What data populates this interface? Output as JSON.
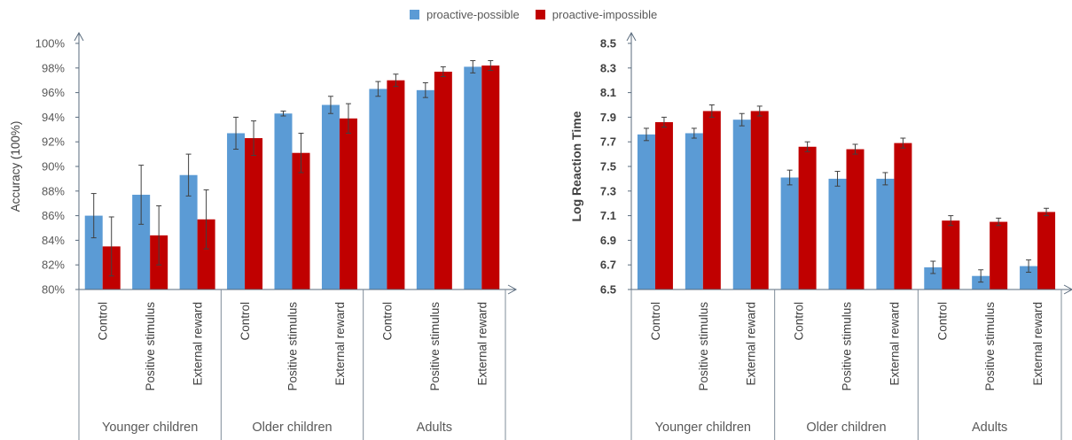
{
  "legend": [
    {
      "name": "proactive-possible",
      "color": "#5b9bd5"
    },
    {
      "name": "proactive-impossible",
      "color": "#c00000"
    }
  ],
  "chart_data": [
    {
      "type": "bar",
      "xlabel": "",
      "ylabel": "Accuracy (100%)",
      "ylim": [
        0.8,
        1.0
      ],
      "yticks": [
        "80%",
        "82%",
        "84%",
        "86%",
        "88%",
        "90%",
        "92%",
        "94%",
        "96%",
        "98%",
        "100%"
      ],
      "groups": [
        "Younger children",
        "Older children",
        "Adults"
      ],
      "categories": [
        "Control",
        "Positive stimulus",
        "External reward",
        "Control",
        "Positive stimulus",
        "External reward",
        "Control",
        "Positive stimulus",
        "External reward"
      ],
      "series": [
        {
          "name": "proactive-possible",
          "values": [
            0.86,
            0.877,
            0.893,
            0.927,
            0.943,
            0.95,
            0.963,
            0.962,
            0.981
          ],
          "errors": [
            0.018,
            0.024,
            0.017,
            0.013,
            0.002,
            0.007,
            0.006,
            0.006,
            0.005
          ]
        },
        {
          "name": "proactive-impossible",
          "values": [
            0.835,
            0.844,
            0.857,
            0.923,
            0.911,
            0.939,
            0.97,
            0.977,
            0.982
          ],
          "errors": [
            0.024,
            0.024,
            0.024,
            0.014,
            0.016,
            0.012,
            0.005,
            0.004,
            0.004
          ]
        }
      ],
      "grid": false,
      "legend_position": "top"
    },
    {
      "type": "bar",
      "xlabel": "",
      "ylabel": "Log Reaction Time",
      "ylim": [
        6.5,
        8.5
      ],
      "yticks": [
        "6.5",
        "6.7",
        "6.9",
        "7.1",
        "7.3",
        "7.5",
        "7.7",
        "7.9",
        "8.1",
        "8.3",
        "8.5"
      ],
      "groups": [
        "Younger children",
        "Older children",
        "Adults"
      ],
      "categories": [
        "Control",
        "Positive stimulus",
        "External reward",
        "Control",
        "Positive stimulus",
        "External reward",
        "Control",
        "Positive stimulus",
        "External reward"
      ],
      "series": [
        {
          "name": "proactive-possible",
          "values": [
            7.76,
            7.77,
            7.88,
            7.41,
            7.4,
            7.4,
            6.68,
            6.61,
            6.69
          ],
          "errors": [
            0.05,
            0.04,
            0.05,
            0.06,
            0.06,
            0.05,
            0.05,
            0.05,
            0.05
          ]
        },
        {
          "name": "proactive-impossible",
          "values": [
            7.86,
            7.95,
            7.95,
            7.66,
            7.64,
            7.69,
            7.06,
            7.05,
            7.13
          ],
          "errors": [
            0.04,
            0.05,
            0.04,
            0.04,
            0.04,
            0.04,
            0.04,
            0.03,
            0.03
          ]
        }
      ],
      "grid": false,
      "legend_position": "top"
    }
  ]
}
